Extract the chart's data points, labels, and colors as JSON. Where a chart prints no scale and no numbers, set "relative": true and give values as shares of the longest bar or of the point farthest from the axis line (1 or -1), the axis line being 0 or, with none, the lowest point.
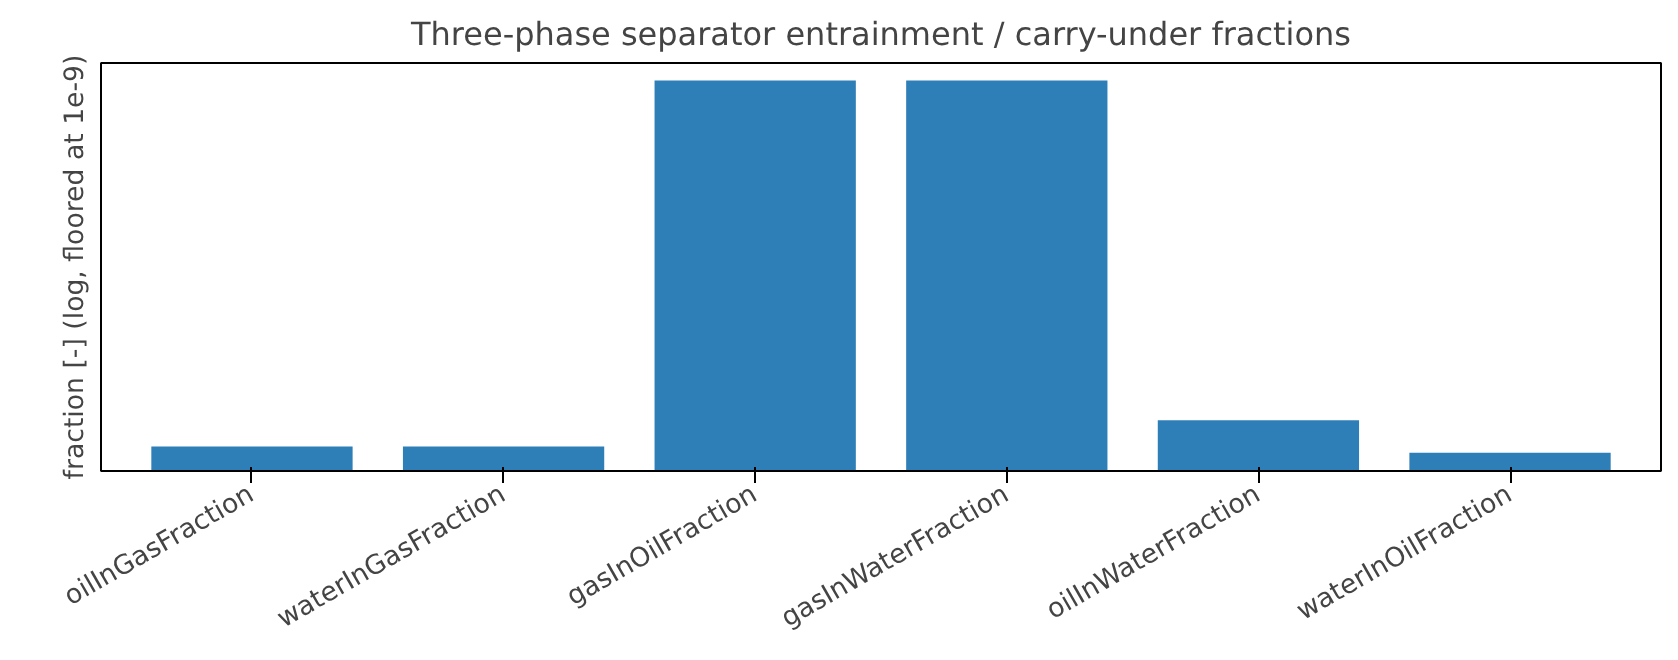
{
  "chart_data": {
    "type": "bar",
    "title": "Three-phase separator entrainment / carry-under fractions",
    "ylabel": "fraction [-] (log, floored at 1e-9)",
    "categories": [
      "oilInGasFraction",
      "waterInGasFraction",
      "gasInOilFraction",
      "gasInWaterFraction",
      "oilInWaterFraction",
      "waterInOilFraction"
    ],
    "values": [
      0.063,
      0.063,
      1.0,
      1.0,
      0.13,
      0.047
    ],
    "color": "#2e7fb8",
    "relative": true
  }
}
